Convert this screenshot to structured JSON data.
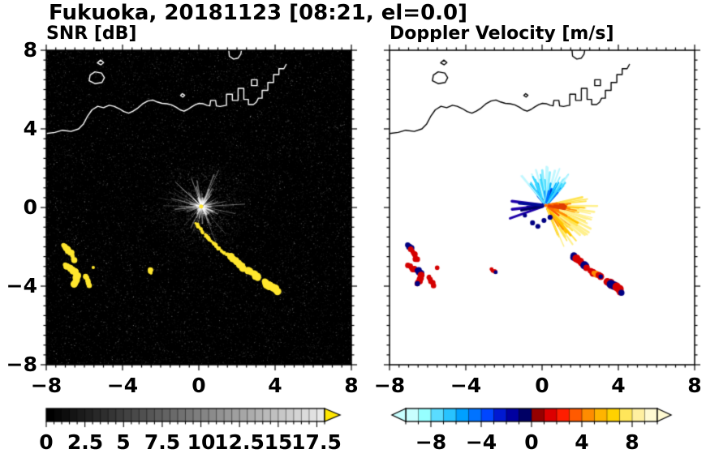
{
  "title": "Fukuoka, 20181123 [08:21, el=0.0]",
  "panels": {
    "snr": {
      "label": "SNR [dB]",
      "xtick_labels": [
        "−8",
        "−4",
        "0",
        "4",
        "8"
      ],
      "ytick_labels": [
        "8",
        "4",
        "0",
        "−4",
        "−8"
      ]
    },
    "doppler": {
      "label": "Doppler Velocity [m/s]",
      "xtick_labels": [
        "−8",
        "−4",
        "0",
        "4",
        "8"
      ]
    }
  },
  "colorbars": {
    "snr": {
      "tick_labels": [
        "0",
        "2.5",
        "5",
        "7.5",
        "10",
        "12.5",
        "15",
        "17.5"
      ],
      "min": 0,
      "max": 18,
      "colormap": "grayscale",
      "over_arrow_color": "#ffe600"
    },
    "velocity": {
      "tick_labels": [
        "−8",
        "−4",
        "0",
        "4",
        "8"
      ],
      "min": -10,
      "max": 10,
      "under_arrow_color": "#c8ffff",
      "over_arrow_color": "#fffad2",
      "segment_colors": [
        "#c8ffff",
        "#96ffff",
        "#5adcff",
        "#28c3ff",
        "#00a0ff",
        "#0073ff",
        "#0046ff",
        "#0019d2",
        "#0000a0",
        "#000064",
        "#960000",
        "#dc0000",
        "#ff1e00",
        "#ff5a00",
        "#ff8c00",
        "#ffb400",
        "#ffd200",
        "#ffe65a",
        "#fff0a0",
        "#fffad2"
      ]
    }
  },
  "coastline": {
    "mainland": [
      [
        -8.1,
        3.75
      ],
      [
        -7.55,
        3.82
      ],
      [
        -7.15,
        3.93
      ],
      [
        -6.7,
        3.87
      ],
      [
        -6.3,
        4.0
      ],
      [
        -6.05,
        4.25
      ],
      [
        -5.85,
        4.62
      ],
      [
        -5.6,
        4.97
      ],
      [
        -5.3,
        5.15
      ],
      [
        -5.0,
        5.08
      ],
      [
        -4.7,
        5.2
      ],
      [
        -4.45,
        5.15
      ],
      [
        -4.18,
        5.03
      ],
      [
        -3.93,
        4.88
      ],
      [
        -3.68,
        4.8
      ],
      [
        -3.45,
        4.9
      ],
      [
        -3.2,
        5.06
      ],
      [
        -2.95,
        5.27
      ],
      [
        -2.68,
        5.42
      ],
      [
        -2.42,
        5.47
      ],
      [
        -2.18,
        5.37
      ],
      [
        -1.93,
        5.3
      ],
      [
        -1.68,
        5.28
      ],
      [
        -1.43,
        5.22
      ],
      [
        -1.18,
        5.1
      ],
      [
        -0.98,
        4.97
      ],
      [
        -0.78,
        4.9
      ],
      [
        -0.58,
        4.99
      ],
      [
        -0.38,
        5.12
      ],
      [
        -0.18,
        5.23
      ],
      [
        0.02,
        5.3
      ],
      [
        0.22,
        5.28
      ],
      [
        0.42,
        5.2
      ],
      [
        0.58,
        5.17
      ],
      [
        0.62,
        5.45
      ],
      [
        0.88,
        5.45
      ],
      [
        0.92,
        5.17
      ],
      [
        1.12,
        5.14
      ],
      [
        1.32,
        5.18
      ],
      [
        1.45,
        5.2
      ],
      [
        1.45,
        5.76
      ],
      [
        1.76,
        5.76
      ],
      [
        1.76,
        5.45
      ],
      [
        2.06,
        5.45
      ],
      [
        2.06,
        6.06
      ],
      [
        2.36,
        6.06
      ],
      [
        2.36,
        5.5
      ],
      [
        2.6,
        5.5
      ],
      [
        2.6,
        5.24
      ],
      [
        2.86,
        5.24
      ],
      [
        3.02,
        5.36
      ],
      [
        3.12,
        5.56
      ],
      [
        3.32,
        5.56
      ],
      [
        3.32,
        5.96
      ],
      [
        3.62,
        5.96
      ],
      [
        3.62,
        6.36
      ],
      [
        3.92,
        6.36
      ],
      [
        3.92,
        6.76
      ],
      [
        4.2,
        6.76
      ],
      [
        4.2,
        7.06
      ],
      [
        4.46,
        7.06
      ],
      [
        4.58,
        7.28
      ]
    ],
    "islands": [
      [
        [
          -5.75,
          6.45
        ],
        [
          -5.45,
          6.3
        ],
        [
          -5.08,
          6.36
        ],
        [
          -4.95,
          6.6
        ],
        [
          -5.1,
          6.84
        ],
        [
          -5.45,
          6.9
        ],
        [
          -5.7,
          6.74
        ]
      ],
      [
        [
          -5.32,
          7.36
        ],
        [
          -5.14,
          7.26
        ],
        [
          -4.99,
          7.37
        ],
        [
          -5.15,
          7.5
        ]
      ],
      [
        [
          -0.96,
          5.7
        ],
        [
          -0.84,
          5.62
        ],
        [
          -0.74,
          5.71
        ],
        [
          -0.86,
          5.79
        ]
      ],
      [
        [
          2.76,
          6.2
        ],
        [
          2.76,
          6.5
        ],
        [
          3.06,
          6.5
        ],
        [
          3.06,
          6.2
        ]
      ]
    ],
    "open_lines": [
      [
        [
          1.56,
          8.12
        ],
        [
          1.6,
          7.7
        ],
        [
          1.82,
          7.55
        ],
        [
          2.06,
          7.6
        ],
        [
          2.2,
          7.8
        ],
        [
          2.26,
          8.12
        ]
      ]
    ]
  },
  "chart_data": [
    {
      "type": "heatmap",
      "title": "SNR [dB]",
      "xlim": [
        -8,
        8
      ],
      "ylim": [
        -8,
        8
      ],
      "xticks": [
        -8,
        -4,
        0,
        4,
        8
      ],
      "yticks": [
        -8,
        -4,
        0,
        4,
        8
      ],
      "colorbar": {
        "range": [
          0,
          18
        ],
        "tick_values": [
          0,
          2.5,
          5,
          7.5,
          10,
          12.5,
          15,
          17.5
        ],
        "colormap": "grayscale",
        "over_color": "yellow"
      },
      "background": "black, low-SNR speckle noise",
      "features": {
        "radar_site": [
          0.12,
          0.05
        ],
        "ground_clutter_rays": {
          "center": [
            0.15,
            0.05
          ],
          "max_radius": 2.45
        },
        "strong_echo_chains": [
          {
            "r": 0.13,
            "pts": [
              [
                -7.05,
                -1.95
              ],
              [
                -6.85,
                -2.15
              ],
              [
                -6.68,
                -2.4
              ],
              [
                -6.58,
                -2.65
              ]
            ]
          },
          {
            "r": 0.14,
            "pts": [
              [
                -7.0,
                -2.95
              ],
              [
                -6.78,
                -3.1
              ],
              [
                -6.55,
                -3.2
              ],
              [
                -6.35,
                -3.42
              ],
              [
                -6.42,
                -3.68
              ],
              [
                -6.58,
                -3.92
              ]
            ]
          },
          {
            "r": 0.11,
            "pts": [
              [
                -5.95,
                -3.55
              ],
              [
                -5.82,
                -3.75
              ],
              [
                -5.72,
                -3.95
              ]
            ]
          },
          {
            "r": 0.09,
            "pts": [
              [
                -5.55,
                -3.05
              ]
            ]
          },
          {
            "r": 0.1,
            "pts": [
              [
                -2.6,
                -3.15
              ],
              [
                -2.47,
                -3.3
              ]
            ]
          },
          {
            "r": 0.08,
            "pts": [
              [
                -0.15,
                -0.85
              ],
              [
                0.02,
                -1.02
              ],
              [
                0.18,
                -1.2
              ],
              [
                0.33,
                -1.42
              ],
              [
                0.52,
                -1.58
              ],
              [
                0.72,
                -1.78
              ],
              [
                0.92,
                -1.98
              ],
              [
                1.12,
                -2.12
              ],
              [
                1.32,
                -2.28
              ],
              [
                1.48,
                -2.42
              ]
            ]
          },
          {
            "r": 0.16,
            "pts": [
              [
                1.62,
                -2.5
              ],
              [
                1.82,
                -2.62
              ],
              [
                2.02,
                -2.78
              ],
              [
                2.22,
                -2.95
              ],
              [
                2.32,
                -3.08
              ]
            ]
          },
          {
            "r": 0.15,
            "pts": [
              [
                2.55,
                -3.22
              ],
              [
                2.75,
                -3.32
              ],
              [
                2.95,
                -3.45
              ],
              [
                3.12,
                -3.55
              ]
            ]
          },
          {
            "r": 0.17,
            "pts": [
              [
                3.45,
                -3.78
              ],
              [
                3.65,
                -3.92
              ],
              [
                3.85,
                -4.02
              ],
              [
                4.02,
                -4.18
              ],
              [
                4.12,
                -4.32
              ]
            ]
          }
        ]
      }
    },
    {
      "type": "heatmap",
      "title": "Doppler Velocity [m/s]",
      "xlim": [
        -8,
        8
      ],
      "ylim": [
        -8,
        8
      ],
      "xticks": [
        -8,
        -4,
        0,
        4,
        8
      ],
      "yticks": [
        -8,
        -4,
        0,
        4,
        8
      ],
      "colorbar": {
        "range": [
          -10,
          10
        ],
        "tick_values": [
          -8,
          -4,
          0,
          4,
          8
        ],
        "colormap": "cyan-blue-navy | red-orange-yellow",
        "under_color": "pale cyan",
        "over_color": "pale yellow"
      },
      "background": "white (no echo)",
      "features": {
        "center": [
          0.2,
          0.1
        ],
        "approaching_fan": {
          "angle_deg": [
            46,
            132
          ],
          "count": 75,
          "len": [
            0.35,
            2.15
          ],
          "lw": [
            1.4,
            3.2
          ],
          "colors": [
            "#000a8c",
            "#0038d2",
            "#0078ff",
            "#00b4ff",
            "#3cd8ff",
            "#8ceeff",
            "#c0f8ff"
          ]
        },
        "left_streaks": {
          "angle_deg": [
            160,
            200
          ],
          "count": 12,
          "len": [
            0.5,
            2.0
          ],
          "lw": [
            2.2,
            3.6
          ],
          "colors": [
            "#000066",
            "#000a96",
            "#1e00aa"
          ]
        },
        "receding_fan": {
          "angle_deg": [
            -72,
            14
          ],
          "count": 85,
          "len": [
            0.3,
            2.7
          ],
          "lw": [
            1.4,
            3.0
          ],
          "colors": [
            "#e11e00",
            "#ff5500",
            "#ff8c00",
            "#ffc300",
            "#ffe450",
            "#fff08c"
          ]
        },
        "near_blob": {
          "angle_deg": [
            -30,
            10
          ],
          "count": 16,
          "len": [
            0.3,
            1.05
          ],
          "lw": [
            3,
            4.6
          ],
          "colors": [
            "#ff6a00",
            "#ff8200",
            "#e13c00"
          ]
        },
        "navy_specks": [
          [
            -0.5,
            -0.78
          ],
          [
            -0.22,
            -0.96
          ],
          [
            0.42,
            -0.5
          ],
          [
            0.1,
            -0.66
          ],
          [
            -0.9,
            -0.4
          ]
        ],
        "echo_chains": [
          {
            "r": 0.13,
            "pts": [
              [
                -7.05,
                -1.95
              ],
              [
                -6.85,
                -2.15
              ],
              [
                -6.68,
                -2.4
              ],
              [
                -6.58,
                -2.65
              ]
            ],
            "colors": [
              "#000082",
              "#d40000",
              "#d40000",
              "#d40000"
            ]
          },
          {
            "r": 0.14,
            "pts": [
              [
                -7.0,
                -2.95
              ],
              [
                -6.78,
                -3.1
              ],
              [
                -6.55,
                -3.2
              ],
              [
                -6.35,
                -3.42
              ],
              [
                -6.42,
                -3.68
              ],
              [
                -6.58,
                -3.92
              ]
            ],
            "colors": [
              "#d40000",
              "#d40000",
              "#000082",
              "#d40000",
              "#d40000",
              "#000082"
            ]
          },
          {
            "r": 0.11,
            "pts": [
              [
                -5.95,
                -3.55
              ],
              [
                -5.82,
                -3.75
              ],
              [
                -5.72,
                -3.95
              ]
            ],
            "colors": [
              "#d40000",
              "#d40000",
              "#d40000"
            ]
          },
          {
            "r": 0.09,
            "pts": [
              [
                -5.55,
                -3.05
              ]
            ],
            "colors": [
              "#d40000"
            ]
          },
          {
            "r": 0.1,
            "pts": [
              [
                -2.6,
                -3.15
              ],
              [
                -2.47,
                -3.3
              ]
            ],
            "colors": [
              "#d40000",
              "#000082"
            ]
          },
          {
            "r": 0.16,
            "pts": [
              [
                1.62,
                -2.5
              ],
              [
                1.82,
                -2.62
              ],
              [
                2.02,
                -2.78
              ],
              [
                2.22,
                -2.95
              ],
              [
                2.32,
                -3.08
              ]
            ],
            "colors": [
              "#000082",
              "#d40000",
              "#d40000",
              "#000082",
              "#d40000"
            ]
          },
          {
            "r": 0.15,
            "pts": [
              [
                2.55,
                -3.22
              ],
              [
                2.75,
                -3.32
              ],
              [
                2.95,
                -3.45
              ],
              [
                3.12,
                -3.55
              ]
            ],
            "colors": [
              "#d40000",
              "#ff8800",
              "#d40000",
              "#000082"
            ]
          },
          {
            "r": 0.17,
            "pts": [
              [
                3.45,
                -3.78
              ],
              [
                3.65,
                -3.92
              ],
              [
                3.85,
                -4.02
              ],
              [
                4.02,
                -4.18
              ],
              [
                4.12,
                -4.32
              ]
            ],
            "colors": [
              "#d40000",
              "#000082",
              "#d40000",
              "#d40000",
              "#000082"
            ]
          }
        ]
      }
    }
  ]
}
